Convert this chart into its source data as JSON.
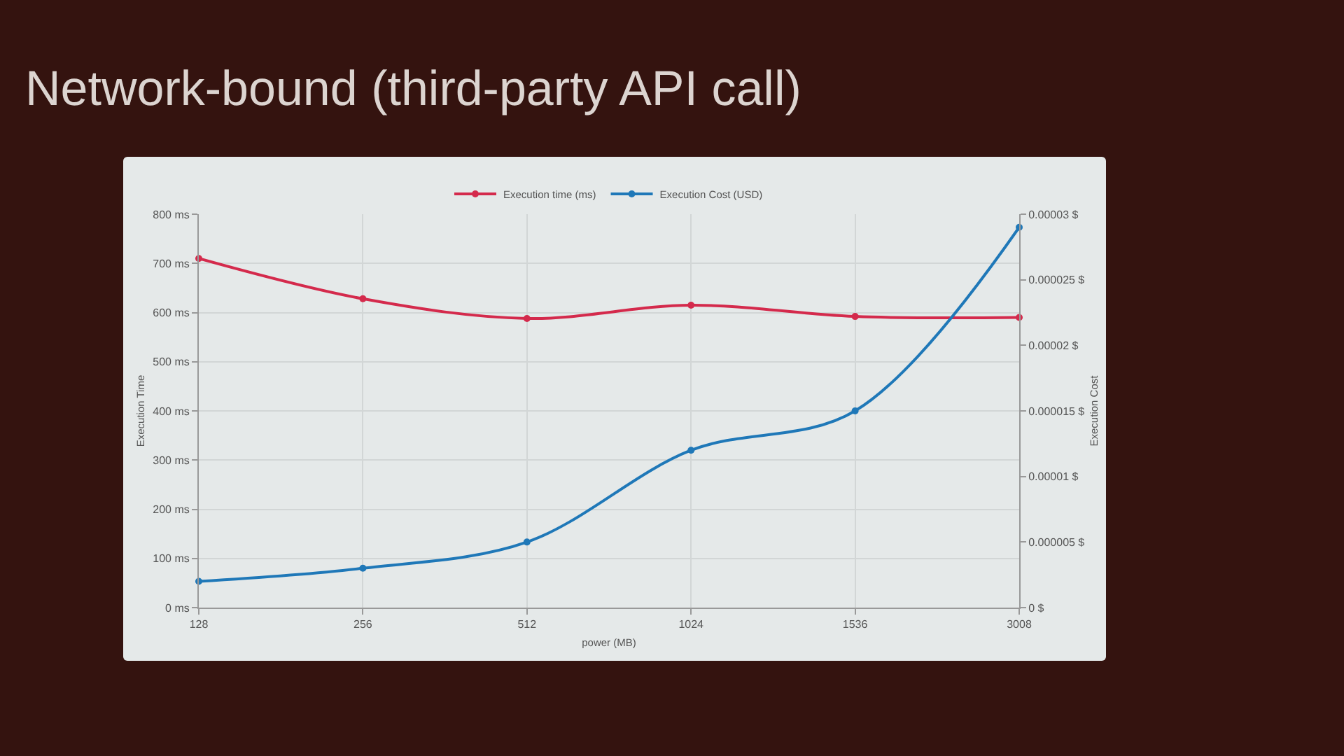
{
  "chart_data": {
    "type": "line",
    "title": "Network-bound (third-party API call)",
    "xlabel": "power (MB)",
    "ylabel": "Execution Time",
    "y2label": "Execution Cost",
    "categories": [
      "128",
      "256",
      "512",
      "1024",
      "1536",
      "3008"
    ],
    "series": [
      {
        "name": "Execution time (ms)",
        "color": "#d42a4c",
        "values": [
          710,
          628,
          588,
          615,
          592,
          590
        ]
      },
      {
        "name": "Execution Cost (USD)",
        "color": "#1f78b8",
        "axis": "y2",
        "values": [
          2e-06,
          3e-06,
          5e-06,
          1.2e-05,
          1.5e-05,
          2.9e-05
        ]
      }
    ],
    "ylim": [
      0,
      800
    ],
    "yticks": [
      {
        "value": 0,
        "label": "0 ms"
      },
      {
        "value": 100,
        "label": "100 ms"
      },
      {
        "value": 200,
        "label": "200 ms"
      },
      {
        "value": 300,
        "label": "300 ms"
      },
      {
        "value": 400,
        "label": "400 ms"
      },
      {
        "value": 500,
        "label": "500 ms"
      },
      {
        "value": 600,
        "label": "600 ms"
      },
      {
        "value": 700,
        "label": "700 ms"
      },
      {
        "value": 800,
        "label": "800 ms"
      }
    ],
    "y2lim": [
      0,
      3e-05
    ],
    "y2ticks": [
      {
        "value": 0,
        "label": "0 $"
      },
      {
        "value": 5e-06,
        "label": "0.000005 $"
      },
      {
        "value": 1e-05,
        "label": "0.00001 $"
      },
      {
        "value": 1.5e-05,
        "label": "0.000015 $"
      },
      {
        "value": 2e-05,
        "label": "0.00002 $"
      },
      {
        "value": 2.5e-05,
        "label": "0.000025 $"
      },
      {
        "value": 3e-05,
        "label": "0.00003 $"
      }
    ],
    "grid": true,
    "legend": "top",
    "marker": "circle"
  }
}
